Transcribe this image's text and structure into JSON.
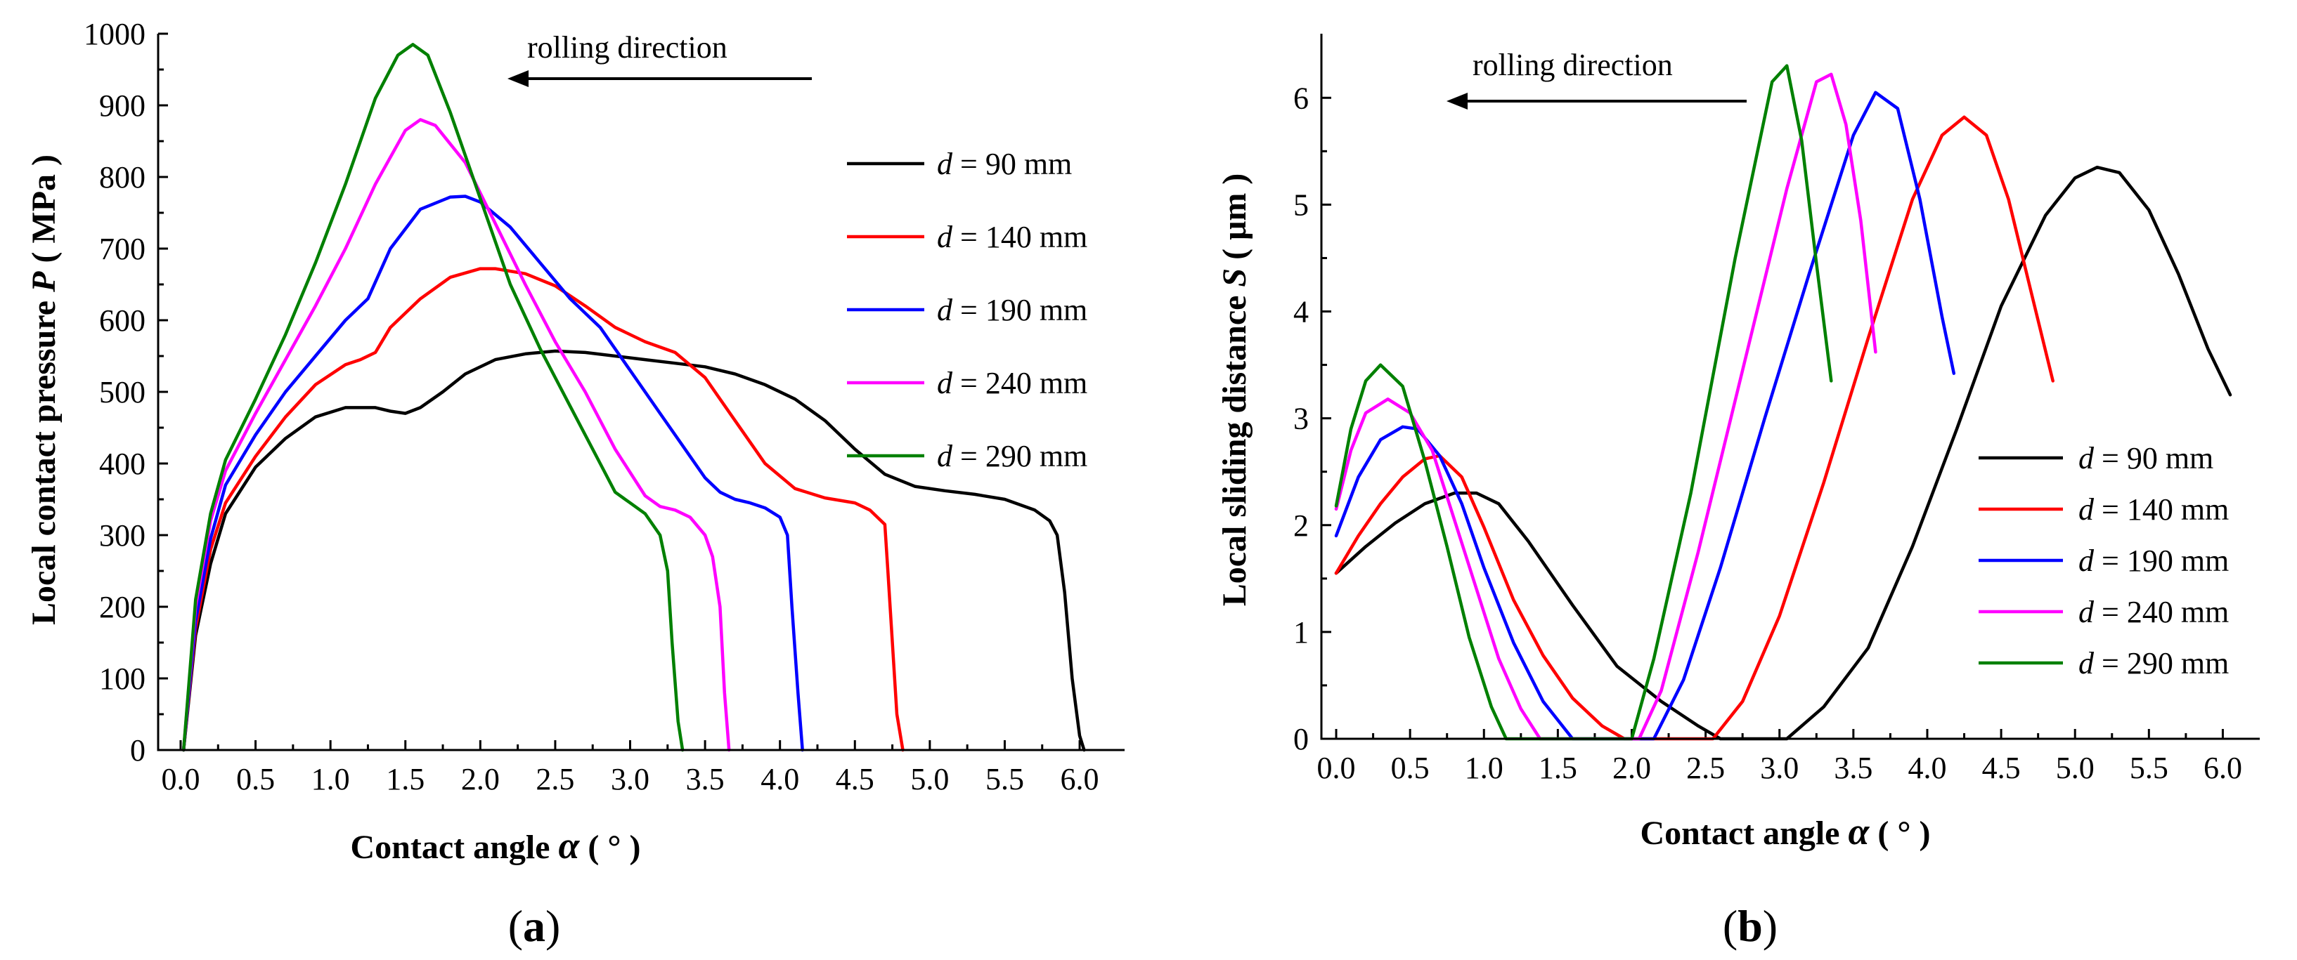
{
  "chart_data": [
    {
      "type": "line",
      "panel_label": "a",
      "xlabel": "Contact angle",
      "xlabel_symbol": "α",
      "xlabel_unit": "( ° )",
      "ylabel": "Local contact pressure",
      "ylabel_symbol": "P",
      "ylabel_unit": "( MPa )",
      "xlim": [
        -0.15,
        6.3
      ],
      "ylim": [
        0,
        1000
      ],
      "xticks": [
        0.0,
        0.5,
        1.0,
        1.5,
        2.0,
        2.5,
        3.0,
        3.5,
        4.0,
        4.5,
        5.0,
        5.5,
        6.0
      ],
      "xtick_labels": [
        "0.0",
        "0.5",
        "1.0",
        "1.5",
        "2.0",
        "2.5",
        "3.0",
        "3.5",
        "4.0",
        "4.5",
        "5.0",
        "5.5",
        "6.0"
      ],
      "yticks": [
        0,
        100,
        200,
        300,
        400,
        500,
        600,
        700,
        800,
        900,
        1000
      ],
      "ytick_labels": [
        "0",
        "100",
        "200",
        "300",
        "400",
        "500",
        "600",
        "700",
        "800",
        "900",
        "1000"
      ],
      "annotation": "rolling direction",
      "legend_position": "right",
      "series": [
        {
          "name": "d = 90 mm",
          "symbol": "d",
          "label": "= 90 mm",
          "color": "#000000",
          "x": [
            0.02,
            0.1,
            0.2,
            0.3,
            0.5,
            0.7,
            0.9,
            1.1,
            1.3,
            1.4,
            1.5,
            1.6,
            1.75,
            1.9,
            2.1,
            2.3,
            2.5,
            2.7,
            2.9,
            3.1,
            3.3,
            3.5,
            3.7,
            3.9,
            4.1,
            4.3,
            4.5,
            4.7,
            4.9,
            5.1,
            5.3,
            5.5,
            5.7,
            5.8,
            5.85,
            5.9,
            5.95,
            6.0,
            6.03
          ],
          "y": [
            0,
            160,
            260,
            330,
            395,
            435,
            465,
            478,
            478,
            473,
            470,
            478,
            500,
            525,
            545,
            553,
            557,
            555,
            550,
            545,
            540,
            535,
            525,
            510,
            490,
            460,
            420,
            385,
            368,
            362,
            357,
            350,
            335,
            320,
            300,
            220,
            100,
            20,
            0
          ]
        },
        {
          "name": "d = 140 mm",
          "symbol": "d",
          "label": "= 140 mm",
          "color": "#ff0000",
          "x": [
            0.02,
            0.1,
            0.2,
            0.3,
            0.5,
            0.7,
            0.9,
            1.1,
            1.2,
            1.3,
            1.4,
            1.6,
            1.8,
            2.0,
            2.1,
            2.3,
            2.5,
            2.7,
            2.9,
            3.1,
            3.3,
            3.5,
            3.7,
            3.9,
            4.1,
            4.3,
            4.5,
            4.6,
            4.7,
            4.72,
            4.75,
            4.78,
            4.82
          ],
          "y": [
            0,
            170,
            280,
            345,
            410,
            465,
            510,
            538,
            545,
            555,
            590,
            630,
            660,
            672,
            672,
            665,
            648,
            620,
            590,
            570,
            555,
            520,
            460,
            400,
            365,
            352,
            345,
            335,
            315,
            250,
            150,
            50,
            0
          ]
        },
        {
          "name": "d = 190 mm",
          "symbol": "d",
          "label": "= 190 mm",
          "color": "#0000ff",
          "x": [
            0.02,
            0.1,
            0.2,
            0.3,
            0.5,
            0.7,
            0.9,
            1.1,
            1.25,
            1.4,
            1.6,
            1.8,
            1.9,
            2.0,
            2.2,
            2.4,
            2.6,
            2.8,
            3.0,
            3.2,
            3.4,
            3.5,
            3.6,
            3.7,
            3.8,
            3.9,
            4.0,
            4.05,
            4.08,
            4.12,
            4.15
          ],
          "y": [
            0,
            180,
            295,
            370,
            440,
            500,
            550,
            600,
            630,
            700,
            755,
            772,
            773,
            765,
            730,
            680,
            630,
            590,
            530,
            470,
            410,
            380,
            360,
            350,
            345,
            338,
            325,
            300,
            200,
            80,
            0
          ]
        },
        {
          "name": "d = 240 mm",
          "symbol": "d",
          "label": "= 240 mm",
          "color": "#ff00ff",
          "x": [
            0.02,
            0.1,
            0.2,
            0.3,
            0.5,
            0.7,
            0.9,
            1.1,
            1.3,
            1.5,
            1.6,
            1.7,
            1.9,
            2.1,
            2.3,
            2.5,
            2.7,
            2.9,
            3.1,
            3.2,
            3.3,
            3.4,
            3.5,
            3.55,
            3.6,
            3.63,
            3.66
          ],
          "y": [
            0,
            200,
            320,
            390,
            470,
            545,
            620,
            700,
            790,
            865,
            880,
            872,
            820,
            735,
            650,
            570,
            500,
            420,
            355,
            340,
            335,
            325,
            300,
            270,
            200,
            80,
            0
          ]
        },
        {
          "name": "d = 290 mm",
          "symbol": "d",
          "label": "= 290 mm",
          "color": "#008000",
          "x": [
            0.02,
            0.1,
            0.2,
            0.3,
            0.5,
            0.7,
            0.9,
            1.1,
            1.3,
            1.45,
            1.55,
            1.65,
            1.8,
            2.0,
            2.2,
            2.4,
            2.6,
            2.8,
            2.9,
            3.0,
            3.1,
            3.2,
            3.25,
            3.28,
            3.32,
            3.35
          ],
          "y": [
            0,
            210,
            330,
            405,
            490,
            580,
            680,
            790,
            910,
            970,
            985,
            970,
            890,
            770,
            650,
            560,
            480,
            400,
            360,
            345,
            330,
            300,
            250,
            150,
            40,
            0
          ]
        }
      ]
    },
    {
      "type": "line",
      "panel_label": "b",
      "xlabel": "Contact angle",
      "xlabel_symbol": "α",
      "xlabel_unit": "( ° )",
      "ylabel": "Local sliding distance",
      "ylabel_symbol": "S",
      "ylabel_unit": "( μm )",
      "xlim": [
        -0.1,
        6.25
      ],
      "ylim": [
        0,
        6.6
      ],
      "xticks": [
        0.0,
        0.5,
        1.0,
        1.5,
        2.0,
        2.5,
        3.0,
        3.5,
        4.0,
        4.5,
        5.0,
        5.5,
        6.0
      ],
      "xtick_labels": [
        "0.0",
        "0.5",
        "1.0",
        "1.5",
        "2.0",
        "2.5",
        "3.0",
        "3.5",
        "4.0",
        "4.5",
        "5.0",
        "5.5",
        "6.0"
      ],
      "yticks": [
        0,
        1,
        2,
        3,
        4,
        5,
        6
      ],
      "ytick_labels": [
        "0",
        "1",
        "2",
        "3",
        "4",
        "5",
        "6"
      ],
      "annotation": "rolling direction",
      "legend_position": "bottom-right",
      "series": [
        {
          "name": "d = 90 mm",
          "symbol": "d",
          "label": "= 90 mm",
          "color": "#000000",
          "x": [
            0.0,
            0.2,
            0.4,
            0.6,
            0.8,
            0.95,
            1.1,
            1.3,
            1.6,
            1.9,
            2.2,
            2.45,
            2.6,
            3.05,
            3.3,
            3.6,
            3.9,
            4.2,
            4.5,
            4.8,
            5.0,
            5.15,
            5.3,
            5.5,
            5.7,
            5.9,
            6.05
          ],
          "y": [
            1.55,
            1.8,
            2.02,
            2.2,
            2.3,
            2.3,
            2.2,
            1.85,
            1.25,
            0.68,
            0.35,
            0.12,
            0.0,
            0.0,
            0.3,
            0.85,
            1.8,
            2.9,
            4.05,
            4.9,
            5.25,
            5.35,
            5.3,
            4.95,
            4.35,
            3.65,
            3.22
          ]
        },
        {
          "name": "d = 140 mm",
          "symbol": "d",
          "label": "= 140 mm",
          "color": "#ff0000",
          "x": [
            0.0,
            0.15,
            0.3,
            0.45,
            0.6,
            0.7,
            0.85,
            1.0,
            1.2,
            1.4,
            1.6,
            1.8,
            1.95,
            2.55,
            2.75,
            3.0,
            3.3,
            3.6,
            3.9,
            4.1,
            4.25,
            4.4,
            4.55,
            4.7,
            4.85
          ],
          "y": [
            1.55,
            1.9,
            2.2,
            2.45,
            2.62,
            2.65,
            2.45,
            1.98,
            1.3,
            0.78,
            0.38,
            0.12,
            0.0,
            0.0,
            0.35,
            1.15,
            2.4,
            3.75,
            5.05,
            5.65,
            5.82,
            5.65,
            5.05,
            4.2,
            3.35
          ]
        },
        {
          "name": "d = 190 mm",
          "symbol": "d",
          "label": "= 190 mm",
          "color": "#0000ff",
          "x": [
            0.0,
            0.15,
            0.3,
            0.45,
            0.55,
            0.7,
            0.85,
            1.0,
            1.2,
            1.4,
            1.6,
            2.15,
            2.35,
            2.6,
            2.9,
            3.2,
            3.5,
            3.65,
            3.8,
            3.95,
            4.1,
            4.18
          ],
          "y": [
            1.9,
            2.45,
            2.8,
            2.92,
            2.9,
            2.65,
            2.2,
            1.6,
            0.9,
            0.35,
            0.0,
            0.0,
            0.55,
            1.6,
            3.0,
            4.35,
            5.65,
            6.05,
            5.9,
            5.05,
            3.95,
            3.42
          ]
        },
        {
          "name": "d = 240 mm",
          "symbol": "d",
          "label": "= 240 mm",
          "color": "#ff00ff",
          "x": [
            0.0,
            0.1,
            0.2,
            0.35,
            0.5,
            0.65,
            0.8,
            0.95,
            1.1,
            1.25,
            1.38,
            2.05,
            2.2,
            2.45,
            2.75,
            3.05,
            3.25,
            3.35,
            3.45,
            3.55,
            3.65
          ],
          "y": [
            2.15,
            2.7,
            3.05,
            3.18,
            3.05,
            2.7,
            2.05,
            1.4,
            0.75,
            0.28,
            0.0,
            0.0,
            0.45,
            1.75,
            3.45,
            5.15,
            6.15,
            6.22,
            5.75,
            4.85,
            3.62
          ]
        },
        {
          "name": "d = 290 mm",
          "symbol": "d",
          "label": "= 290 mm",
          "color": "#008000",
          "x": [
            0.0,
            0.1,
            0.2,
            0.3,
            0.45,
            0.6,
            0.75,
            0.9,
            1.05,
            1.15,
            2.0,
            2.15,
            2.4,
            2.7,
            2.95,
            3.05,
            3.15,
            3.25,
            3.35
          ],
          "y": [
            2.18,
            2.9,
            3.35,
            3.5,
            3.3,
            2.6,
            1.8,
            0.95,
            0.3,
            0.0,
            0.0,
            0.75,
            2.3,
            4.5,
            6.15,
            6.3,
            5.6,
            4.45,
            3.35
          ]
        }
      ]
    }
  ]
}
